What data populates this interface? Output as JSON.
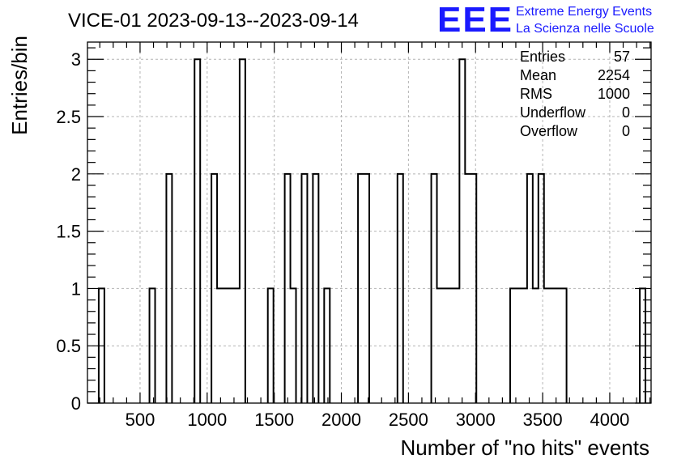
{
  "chart_data": {
    "type": "histogram",
    "title": "VICE-01 2023-09-13--2023-09-14",
    "xlabel": "Number of \"no hits\" events",
    "ylabel": "Entries/bin",
    "xlim": [
      108,
      4308
    ],
    "ylim": [
      0,
      3.15
    ],
    "bin_width": 42,
    "xticks": [
      500,
      1000,
      1500,
      2000,
      2500,
      3000,
      3500,
      4000
    ],
    "yticks": [
      0,
      0.5,
      1,
      1.5,
      2,
      2.5,
      3
    ],
    "ytick_labels": [
      "0",
      "0.5",
      "1",
      "1.5",
      "2",
      "2.5",
      "3"
    ],
    "grid": true,
    "line_color": "#000000",
    "bins": [
      {
        "lo": 192,
        "hi": 234,
        "count": 1
      },
      {
        "lo": 570,
        "hi": 612,
        "count": 1
      },
      {
        "lo": 696,
        "hi": 738,
        "count": 2
      },
      {
        "lo": 906,
        "hi": 948,
        "count": 3
      },
      {
        "lo": 1032,
        "hi": 1074,
        "count": 2
      },
      {
        "lo": 1074,
        "hi": 1242,
        "count": 1
      },
      {
        "lo": 1242,
        "hi": 1284,
        "count": 3
      },
      {
        "lo": 1452,
        "hi": 1494,
        "count": 1
      },
      {
        "lo": 1578,
        "hi": 1620,
        "count": 2
      },
      {
        "lo": 1620,
        "hi": 1662,
        "count": 1
      },
      {
        "lo": 1704,
        "hi": 1746,
        "count": 2
      },
      {
        "lo": 1788,
        "hi": 1830,
        "count": 2
      },
      {
        "lo": 1872,
        "hi": 1914,
        "count": 1
      },
      {
        "lo": 2124,
        "hi": 2208,
        "count": 2
      },
      {
        "lo": 2418,
        "hi": 2460,
        "count": 2
      },
      {
        "lo": 2670,
        "hi": 2712,
        "count": 2
      },
      {
        "lo": 2712,
        "hi": 2880,
        "count": 1
      },
      {
        "lo": 2880,
        "hi": 2922,
        "count": 3
      },
      {
        "lo": 2922,
        "hi": 3006,
        "count": 2
      },
      {
        "lo": 3258,
        "hi": 3384,
        "count": 1
      },
      {
        "lo": 3384,
        "hi": 3426,
        "count": 2
      },
      {
        "lo": 3426,
        "hi": 3468,
        "count": 1
      },
      {
        "lo": 3468,
        "hi": 3510,
        "count": 2
      },
      {
        "lo": 3510,
        "hi": 3678,
        "count": 1
      },
      {
        "lo": 4224,
        "hi": 4266,
        "count": 1
      }
    ],
    "stats": [
      {
        "label": "Entries",
        "value": "57"
      },
      {
        "label": "Mean",
        "value": "2254"
      },
      {
        "label": "RMS",
        "value": "1000"
      },
      {
        "label": "Underflow",
        "value": "0"
      },
      {
        "label": "Overflow",
        "value": "0"
      }
    ]
  },
  "logo": {
    "mark": "EEE",
    "line1": "Extreme Energy Events",
    "line2": "La Scienza nelle Scuole",
    "color": "#1a1aff"
  }
}
